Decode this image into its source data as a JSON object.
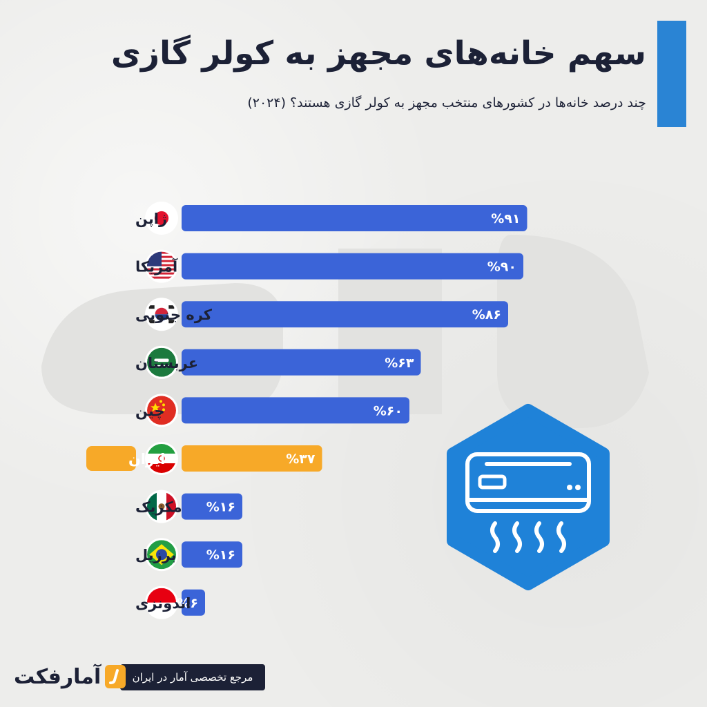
{
  "header": {
    "title": "سهم خانه‌های مجهز به کولر گازی",
    "subtitle": "چند درصد خانه‌ها در کشورهای منتخب مجهز به کولر گازی هستند؟ (۲۰۲۴)"
  },
  "colors": {
    "bar_default": "#3b64d8",
    "bar_highlight": "#f7a928",
    "accent": "#2a84d4",
    "text_dark": "#1c2136",
    "icon_hexagon": "#1f82d8"
  },
  "chart_data": {
    "type": "bar",
    "orientation": "horizontal",
    "title": "سهم خانه‌های مجهز به کولر گازی",
    "subtitle": "چند درصد خانه‌ها در کشورهای منتخب مجهز به کولر گازی هستند؟ (۲۰۲۴)",
    "xlim": [
      0,
      100
    ],
    "grid": false,
    "categories": [
      "ژاپن",
      "آمریکا",
      "کره جنوبی",
      "عربستان",
      "چین",
      "ایران",
      "مکزیک",
      "برزیل",
      "اندونزی"
    ],
    "values": [
      91,
      90,
      86,
      63,
      60,
      37,
      16,
      16,
      6
    ],
    "data_labels": [
      "%۹۱",
      "%۹۰",
      "%۸۶",
      "%۶۳",
      "%۶۰",
      "%۳۷",
      "%۱۶",
      "%۱۶",
      "%۶"
    ],
    "flags": [
      "japan-flag-icon",
      "usa-flag-icon",
      "south-korea-flag-icon",
      "saudi-arabia-flag-icon",
      "china-flag-icon",
      "iran-flag-icon",
      "mexico-flag-icon",
      "brazil-flag-icon",
      "indonesia-flag-icon"
    ],
    "highlight": "ایران"
  },
  "illustration": {
    "icon": "air-conditioner-icon"
  },
  "footer": {
    "tagline": "مرجع تخصصی آمار در ایران",
    "logo": "آمارفکت"
  }
}
